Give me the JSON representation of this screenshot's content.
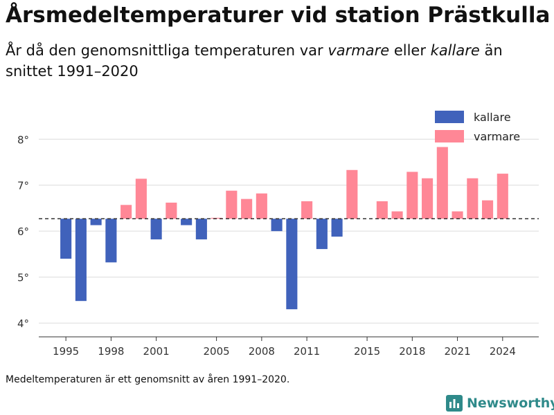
{
  "header": {
    "title": "Årsmedeltemperaturer vid station Prästkulla",
    "subtitle_pre": "År då den genomsnittliga temperaturen var ",
    "subtitle_em1": "varmare",
    "subtitle_mid": " eller ",
    "subtitle_em2": "kallare",
    "subtitle_post": " än snittet 1991–2020"
  },
  "footer": {
    "note": "Medeltemperaturen är ett genomsnitt av åren 1991–2020.",
    "brand": "Newsworthy",
    "brand_icon": "bar-chart-logo-icon"
  },
  "chart_data": {
    "type": "bar",
    "baseline": 6.27,
    "ylim": [
      3.7,
      8.35
    ],
    "yticks": [
      4,
      5,
      6,
      7,
      8
    ],
    "ytick_labels": [
      "4°",
      "5°",
      "6°",
      "7°",
      "8°"
    ],
    "xlim": [
      1993.2,
      2026.4
    ],
    "xticks": [
      1995,
      1998,
      2001,
      2005,
      2008,
      2011,
      2015,
      2018,
      2021,
      2024
    ],
    "xtick_labels": [
      "1995",
      "1998",
      "2001",
      "2005",
      "2008",
      "2011",
      "2015",
      "2018",
      "2021",
      "2024"
    ],
    "grid": true,
    "legend_position": "top-right",
    "series": [
      {
        "name": "kallare",
        "color": "#4062bb"
      },
      {
        "name": "varmare",
        "color": "#ff8796"
      }
    ],
    "colors": {
      "kallare": "#4062bb",
      "varmare": "#ff8796"
    },
    "data": [
      {
        "year": 1995,
        "value": 5.4
      },
      {
        "year": 1996,
        "value": 4.48
      },
      {
        "year": 1997,
        "value": 6.13
      },
      {
        "year": 1998,
        "value": 5.32
      },
      {
        "year": 1999,
        "value": 6.57
      },
      {
        "year": 2000,
        "value": 7.14
      },
      {
        "year": 2001,
        "value": 5.82
      },
      {
        "year": 2002,
        "value": 6.62
      },
      {
        "year": 2003,
        "value": 6.13
      },
      {
        "year": 2004,
        "value": 5.82
      },
      {
        "year": 2005,
        "value": 6.29
      },
      {
        "year": 2006,
        "value": 6.88
      },
      {
        "year": 2007,
        "value": 6.7
      },
      {
        "year": 2008,
        "value": 6.82
      },
      {
        "year": 2009,
        "value": 6.0
      },
      {
        "year": 2010,
        "value": 4.3
      },
      {
        "year": 2011,
        "value": 6.65
      },
      {
        "year": 2012,
        "value": 5.61
      },
      {
        "year": 2013,
        "value": 5.88
      },
      {
        "year": 2014,
        "value": 7.33
      },
      {
        "year": 2016,
        "value": 6.65
      },
      {
        "year": 2017,
        "value": 6.43
      },
      {
        "year": 2018,
        "value": 7.29
      },
      {
        "year": 2019,
        "value": 7.15
      },
      {
        "year": 2020,
        "value": 7.83
      },
      {
        "year": 2021,
        "value": 6.43
      },
      {
        "year": 2022,
        "value": 7.15
      },
      {
        "year": 2023,
        "value": 6.67
      },
      {
        "year": 2024,
        "value": 7.25
      }
    ]
  }
}
